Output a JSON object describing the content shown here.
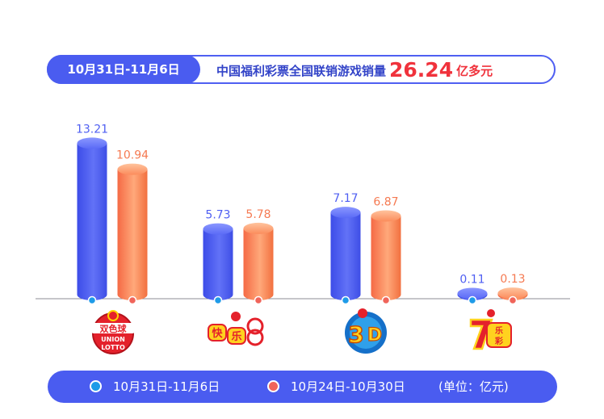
{
  "header": {
    "period": "10月31日-11月6日",
    "label": "中国福利彩票全国联销游戏销量",
    "total": "26.24",
    "unit": "亿多元"
  },
  "legend": {
    "current": "10月31日-11月6日",
    "previous": "10月24日-10月30日",
    "unit_note": "(单位：亿元)"
  },
  "colors": {
    "current": "#4f5ff2",
    "previous": "#f57a52",
    "accent": "#f0323c",
    "dot_current": "#1e9be8",
    "dot_previous": "#f0645a"
  },
  "logos": [
    {
      "icon": "shuangseqiu-logo",
      "text": "双色球 UNION LOTTO"
    },
    {
      "icon": "kuaile8-logo",
      "text": "快乐8"
    },
    {
      "icon": "fucai-3d-logo",
      "text": "3D"
    },
    {
      "icon": "qilecai-logo",
      "text": "7乐彩"
    }
  ],
  "chart_data": {
    "type": "bar",
    "categories": [
      "双色球",
      "快乐8",
      "3D",
      "7乐彩"
    ],
    "series": [
      {
        "name": "10月31日-11月6日",
        "values": [
          13.21,
          5.73,
          7.17,
          0.11
        ]
      },
      {
        "name": "10月24日-10月30日",
        "values": [
          10.94,
          5.78,
          6.87,
          0.13
        ]
      }
    ],
    "value_labels": [
      [
        "13.21",
        "5.73",
        "7.17",
        "0.11"
      ],
      [
        "10.94",
        "5.78",
        "6.87",
        "0.13"
      ]
    ],
    "ylabel": "",
    "unit": "亿元",
    "grid": false,
    "legend_position": "bottom"
  }
}
